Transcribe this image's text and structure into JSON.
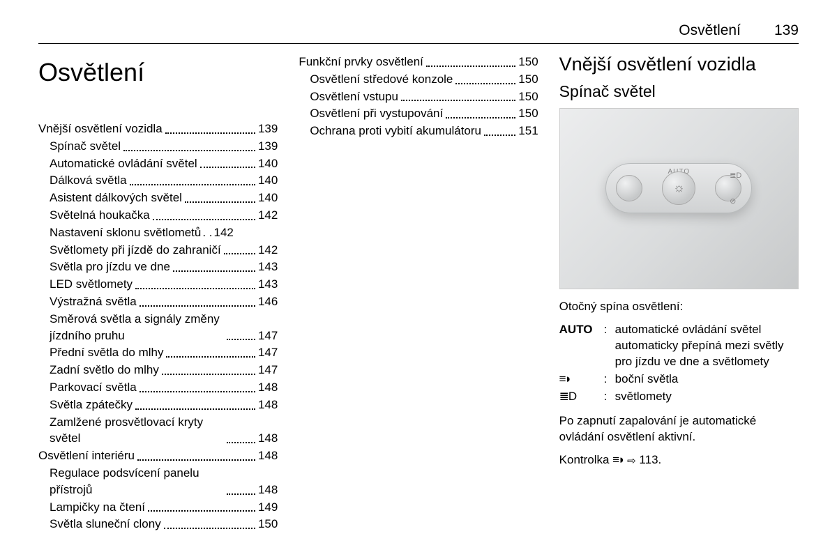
{
  "header": {
    "title": "Osvětlení",
    "page": "139"
  },
  "chapter_title": "Osvětlení",
  "toc_col1": [
    {
      "label": "Vnější osvětlení vozidla",
      "page": "139",
      "section": true
    },
    {
      "label": "Spínač světel",
      "page": "139"
    },
    {
      "label": "Automatické ovládání světel",
      "page": "140"
    },
    {
      "label": "Dálková světla",
      "page": "140"
    },
    {
      "label": "Asistent dálkových světel",
      "page": "140"
    },
    {
      "label": "Světelná houkačka",
      "page": "142"
    },
    {
      "label": "Nastavení sklonu světlometů",
      "page": "142",
      "tight": true
    },
    {
      "label": "Světlomety při jízdě do zahraničí",
      "page": "142",
      "wrap": true
    },
    {
      "label": "Světla pro jízdu ve dne",
      "page": "143"
    },
    {
      "label": "LED světlomety",
      "page": "143"
    },
    {
      "label": "Výstražná světla",
      "page": "146"
    },
    {
      "label": "Směrová světla a signály změny jízdního pruhu",
      "page": "147",
      "wrap": true
    },
    {
      "label": "Přední světla do mlhy",
      "page": "147"
    },
    {
      "label": "Zadní světlo do mlhy",
      "page": "147"
    },
    {
      "label": "Parkovací světla",
      "page": "148"
    },
    {
      "label": "Světla zpátečky",
      "page": "148"
    },
    {
      "label": "Zamlžené prosvětlovací kryty světel",
      "page": "148",
      "wrap": true
    },
    {
      "label": "Osvětlení interiéru",
      "page": "148",
      "section": true
    },
    {
      "label": "Regulace podsvícení panelu přístrojů",
      "page": "148",
      "wrap": true
    },
    {
      "label": "Lampičky na čtení",
      "page": "149"
    },
    {
      "label": "Světla sluneční clony",
      "page": "150"
    }
  ],
  "toc_col2": [
    {
      "label": "Funkční prvky osvětlení",
      "page": "150",
      "section": true
    },
    {
      "label": "Osvětlení středové konzole",
      "page": "150"
    },
    {
      "label": "Osvětlení vstupu",
      "page": "150"
    },
    {
      "label": "Osvětlení při vystupování",
      "page": "150"
    },
    {
      "label": "Ochrana proti vybití akumulátoru",
      "page": "151",
      "wrap": true
    }
  ],
  "right": {
    "h1": "Vnější osvětlení vozidla",
    "h2": "Spínač světel",
    "caption": "Otočný spína osvětlení:",
    "defs": [
      {
        "term": "AUTO",
        "term_bold": true,
        "desc": "automatické ovládání světel automaticky přepíná mezi světly pro jízdu ve dne a světlomety"
      },
      {
        "term_icon": "icon-parking",
        "desc": "boční světla"
      },
      {
        "term_icon": "icon-headlight",
        "desc": "světlomety"
      }
    ],
    "p1": "Po zapnutí zapalování je automatické ovládání osvětlení aktivní.",
    "p2_pre": "Kontrolka ",
    "p2_post": " 113."
  }
}
